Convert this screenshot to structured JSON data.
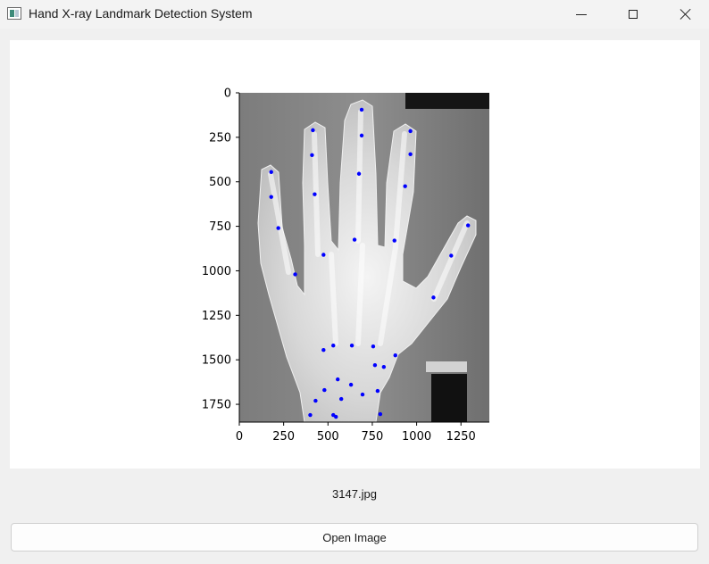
{
  "window": {
    "title": "Hand X-ray Landmark Detection System",
    "icon": "app-window-icon"
  },
  "chart_data": {
    "type": "scatter",
    "title": "",
    "xlabel": "",
    "ylabel": "",
    "xlim": [
      0,
      1410
    ],
    "ylim": [
      1850,
      0
    ],
    "y_inverted": true,
    "grid": false,
    "background": "hand x-ray image",
    "x_ticks": [
      0,
      250,
      500,
      750,
      1000,
      1250
    ],
    "y_ticks": [
      0,
      250,
      500,
      750,
      1000,
      1250,
      1500,
      1750
    ],
    "marker_color": "#0000ff",
    "points": [
      {
        "x": 690,
        "y": 95
      },
      {
        "x": 690,
        "y": 240
      },
      {
        "x": 675,
        "y": 455
      },
      {
        "x": 650,
        "y": 825
      },
      {
        "x": 415,
        "y": 210
      },
      {
        "x": 410,
        "y": 350
      },
      {
        "x": 425,
        "y": 570
      },
      {
        "x": 475,
        "y": 910
      },
      {
        "x": 965,
        "y": 215
      },
      {
        "x": 965,
        "y": 345
      },
      {
        "x": 935,
        "y": 525
      },
      {
        "x": 875,
        "y": 830
      },
      {
        "x": 180,
        "y": 445
      },
      {
        "x": 180,
        "y": 585
      },
      {
        "x": 220,
        "y": 760
      },
      {
        "x": 315,
        "y": 1020
      },
      {
        "x": 1290,
        "y": 745
      },
      {
        "x": 1195,
        "y": 915
      },
      {
        "x": 1095,
        "y": 1150
      },
      {
        "x": 475,
        "y": 1445
      },
      {
        "x": 530,
        "y": 1420
      },
      {
        "x": 635,
        "y": 1420
      },
      {
        "x": 755,
        "y": 1425
      },
      {
        "x": 880,
        "y": 1475
      },
      {
        "x": 765,
        "y": 1530
      },
      {
        "x": 815,
        "y": 1540
      },
      {
        "x": 555,
        "y": 1610
      },
      {
        "x": 630,
        "y": 1640
      },
      {
        "x": 480,
        "y": 1670
      },
      {
        "x": 695,
        "y": 1695
      },
      {
        "x": 780,
        "y": 1675
      },
      {
        "x": 430,
        "y": 1730
      },
      {
        "x": 575,
        "y": 1720
      },
      {
        "x": 400,
        "y": 1810
      },
      {
        "x": 530,
        "y": 1810
      },
      {
        "x": 545,
        "y": 1820
      },
      {
        "x": 795,
        "y": 1805
      }
    ]
  },
  "image": {
    "filename": "3147.jpg"
  },
  "actions": {
    "open_label": "Open Image"
  }
}
